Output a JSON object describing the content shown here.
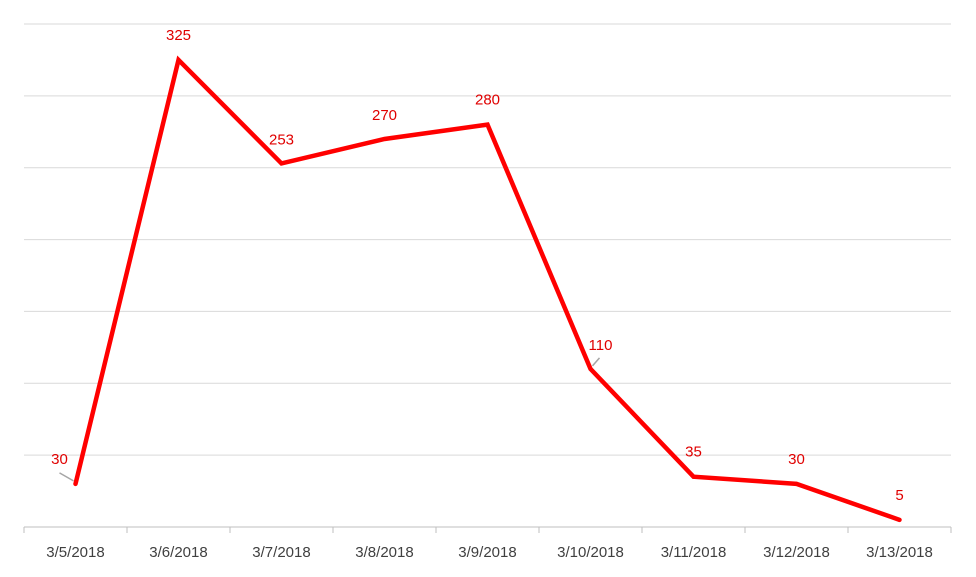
{
  "chart_data": {
    "type": "line",
    "categories": [
      "3/5/2018",
      "3/6/2018",
      "3/7/2018",
      "3/8/2018",
      "3/9/2018",
      "3/10/2018",
      "3/11/2018",
      "3/12/2018",
      "3/13/2018"
    ],
    "series": [
      {
        "values": [
          30,
          325,
          253,
          270,
          280,
          110,
          35,
          30,
          5
        ],
        "color": "#ff0000"
      }
    ],
    "data_labels": [
      "30",
      "325",
      "253",
      "270",
      "280",
      "110",
      "35",
      "30",
      "5"
    ],
    "ylim": [
      0,
      350
    ],
    "ytick_step": 50,
    "y_tick_labels_shown": false,
    "grid": true,
    "legend": "none",
    "title": "",
    "xlabel": "",
    "ylabel": "",
    "colors": {
      "line": "#ff0000",
      "label": "#e00000",
      "grid": "#d9d9d9",
      "axis_text": "#404040"
    }
  }
}
